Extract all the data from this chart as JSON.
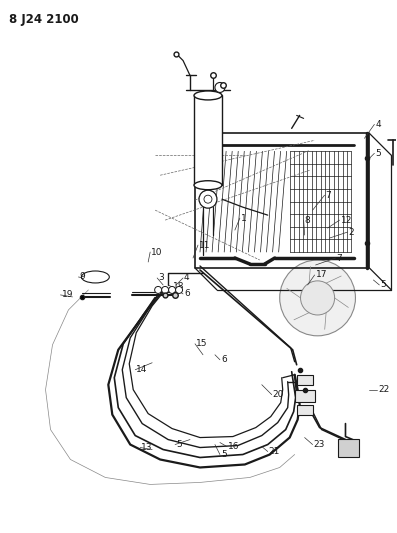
{
  "title": "8 J24 2100",
  "bg_color": "#ffffff",
  "line_color": "#1a1a1a",
  "fig_width": 3.97,
  "fig_height": 5.33,
  "dpi": 100
}
